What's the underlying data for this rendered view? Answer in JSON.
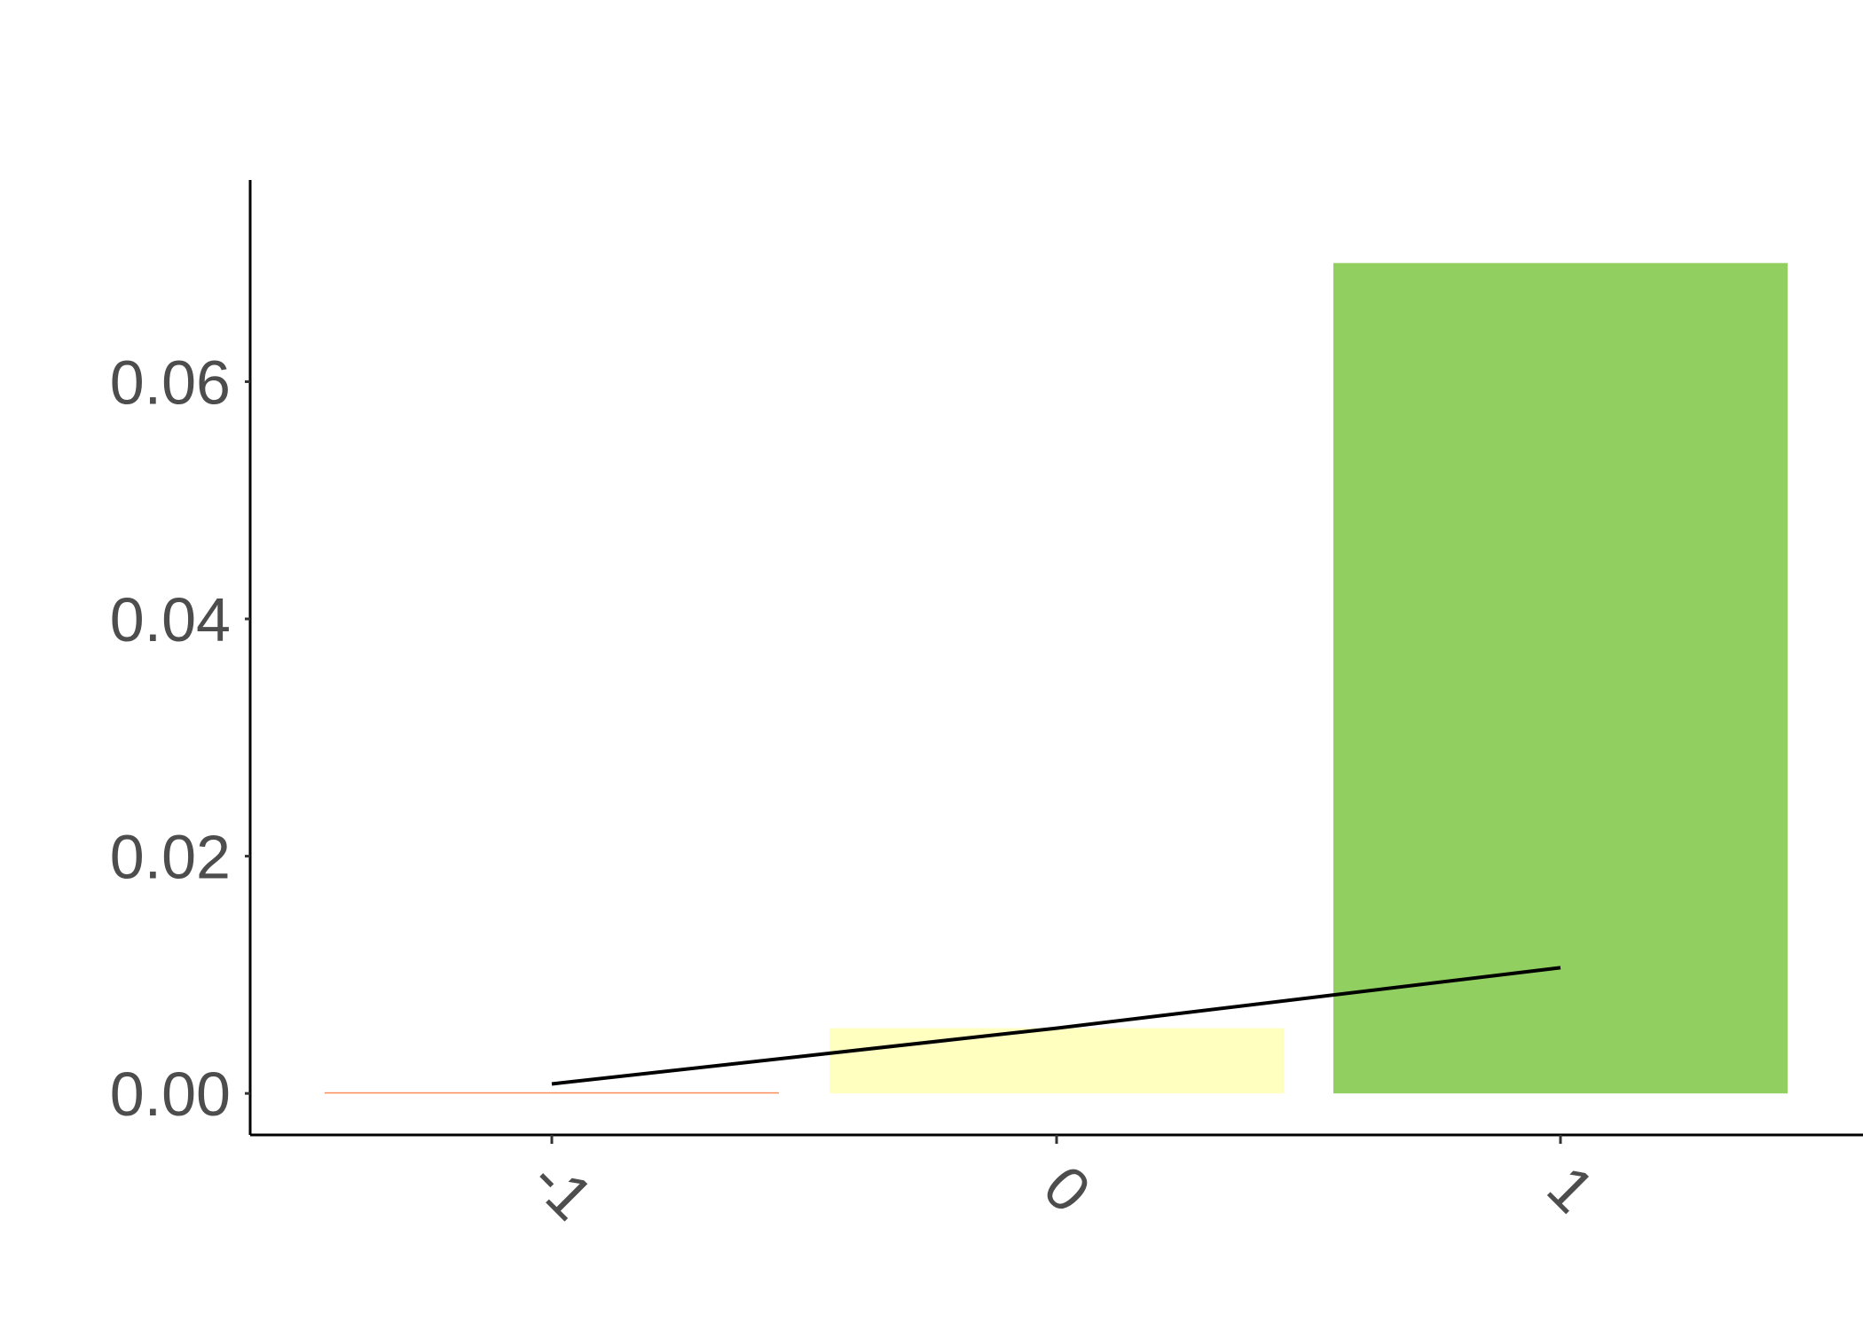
{
  "chart_data": {
    "type": "bar",
    "categories": [
      "-1",
      "0",
      "1"
    ],
    "values": [
      0.0001,
      0.0055,
      0.07
    ],
    "line": {
      "values": [
        0.0008,
        0.0055,
        0.0106
      ]
    },
    "bar_colors": [
      "#FC8D59",
      "#FFFFBF",
      "#91CF60"
    ],
    "line_color": "#000000",
    "ylim": [
      -0.0035,
      0.077
    ],
    "yticks": [
      0.0,
      0.02,
      0.04,
      0.06
    ],
    "ytick_labels": [
      "0.00",
      "0.02",
      "0.04",
      "0.06"
    ],
    "title": "",
    "xlabel": "",
    "ylabel": "",
    "grid": false,
    "legend": "none"
  }
}
